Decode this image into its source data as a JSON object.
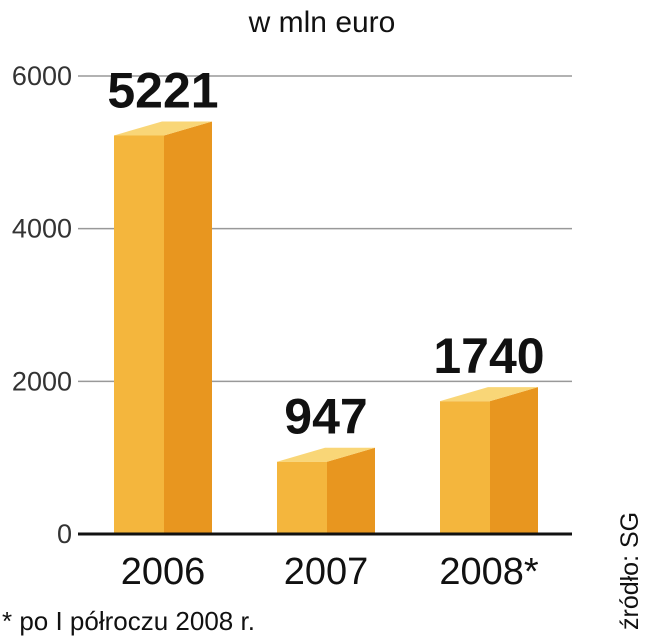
{
  "chart_data": {
    "type": "bar",
    "subtitle": "w mln euro",
    "categories": [
      "2006",
      "2007",
      "2008*"
    ],
    "values": [
      5221,
      947,
      1740
    ],
    "data_labels": [
      "5221",
      "947",
      "1740"
    ],
    "yticks": [
      0,
      2000,
      4000,
      6000
    ],
    "ylim": [
      0,
      6000
    ],
    "grid": true,
    "colors": {
      "front": "#F4B63D",
      "side": "#E8961F",
      "top": "#F9D677",
      "grid": "#999999",
      "axis": "#111111"
    },
    "footnote": "* po I półroczu 2008 r.",
    "source": "źródło: SG"
  }
}
